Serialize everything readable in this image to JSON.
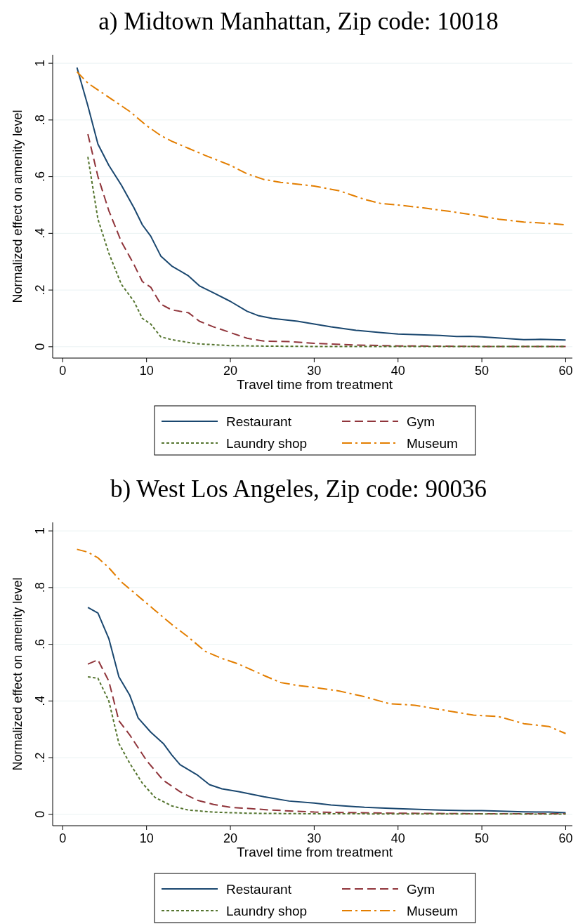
{
  "chart_data": [
    {
      "type": "line",
      "title": "a) Midtown Manhattan, Zip code: 10018",
      "xlabel": "Travel time from treatment",
      "ylabel": "Normalized effect on amenity level",
      "xlim": [
        -1.2,
        60.8
      ],
      "ylim": [
        -0.04,
        1.03
      ],
      "xticks": [
        {
          "value": 0,
          "label": "0"
        },
        10,
        20,
        30,
        40,
        50,
        60
      ],
      "yticks": [
        {
          "value": 0,
          "label": "0"
        },
        {
          "value": 0.2,
          "label": ".2"
        },
        {
          "value": 0.4,
          "label": ".4"
        },
        {
          "value": 0.6,
          "label": ".6"
        },
        {
          "value": 0.8,
          "label": ".8"
        },
        1
      ],
      "grid": "y",
      "legend": "bottom",
      "series": [
        {
          "name": "Restaurant",
          "color": "#1a476f",
          "line_style": "solid",
          "x": [
            1.7,
            3,
            4.2,
            5.5,
            7,
            8.5,
            9.5,
            10.5,
            11.7,
            13,
            15,
            16.3,
            18,
            20,
            22,
            23.3,
            25,
            28,
            30,
            32,
            35,
            38,
            40,
            45,
            47,
            48.5,
            50,
            55,
            57,
            60
          ],
          "values": [
            0.985,
            0.85,
            0.715,
            0.64,
            0.57,
            0.49,
            0.43,
            0.39,
            0.32,
            0.285,
            0.25,
            0.215,
            0.19,
            0.16,
            0.125,
            0.11,
            0.1,
            0.09,
            0.08,
            0.07,
            0.058,
            0.05,
            0.045,
            0.04,
            0.036,
            0.037,
            0.035,
            0.025,
            0.026,
            0.024
          ]
        },
        {
          "name": "Gym",
          "color": "#90353b",
          "line_style": "dashed",
          "x": [
            3,
            4.2,
            5.5,
            7,
            8.5,
            9.5,
            10.5,
            11.7,
            13,
            15,
            16.3,
            18,
            20,
            22,
            24,
            27,
            30,
            35,
            40,
            50,
            60
          ],
          "values": [
            0.75,
            0.6,
            0.48,
            0.37,
            0.29,
            0.23,
            0.21,
            0.15,
            0.13,
            0.12,
            0.09,
            0.07,
            0.05,
            0.03,
            0.02,
            0.018,
            0.012,
            0.006,
            0.003,
            0.001,
            0.001
          ]
        },
        {
          "name": "Laundry shop",
          "color": "#55752f",
          "line_style": "dotted",
          "x": [
            3,
            4.2,
            5.5,
            7,
            8.5,
            9.5,
            10.5,
            11.7,
            13,
            15,
            16.3,
            20,
            25,
            30,
            60
          ],
          "values": [
            0.67,
            0.45,
            0.33,
            0.22,
            0.16,
            0.1,
            0.08,
            0.035,
            0.025,
            0.015,
            0.01,
            0.004,
            0.002,
            0.001,
            0.001
          ]
        },
        {
          "name": "Museum",
          "color": "#e37e00",
          "line_style": "dashdot",
          "x": [
            1.7,
            3,
            4.5,
            6,
            8,
            10,
            11.7,
            13,
            15,
            17,
            20,
            22,
            24,
            26,
            30,
            33,
            36,
            38,
            40,
            43,
            46,
            49,
            52,
            55,
            58,
            60
          ],
          "values": [
            0.97,
            0.93,
            0.9,
            0.87,
            0.83,
            0.78,
            0.745,
            0.725,
            0.7,
            0.675,
            0.64,
            0.61,
            0.59,
            0.58,
            0.567,
            0.55,
            0.52,
            0.505,
            0.5,
            0.49,
            0.478,
            0.465,
            0.45,
            0.44,
            0.435,
            0.43
          ]
        }
      ]
    },
    {
      "type": "line",
      "title": "b) West Los Angeles, Zip code: 90036",
      "xlabel": "Travel time from treatment",
      "ylabel": "Normalized effect on amenity level",
      "xlim": [
        -1.2,
        60.8
      ],
      "ylim": [
        -0.04,
        1.03
      ],
      "xticks": [
        {
          "value": 0,
          "label": "0"
        },
        10,
        20,
        30,
        40,
        50,
        60
      ],
      "yticks": [
        {
          "value": 0,
          "label": "0"
        },
        {
          "value": 0.2,
          "label": ".2"
        },
        {
          "value": 0.4,
          "label": ".4"
        },
        {
          "value": 0.6,
          "label": ".6"
        },
        {
          "value": 0.8,
          "label": ".8"
        },
        1
      ],
      "grid": "y",
      "legend": "bottom",
      "series": [
        {
          "name": "Restaurant",
          "color": "#1a476f",
          "line_style": "solid",
          "x": [
            3,
            4.2,
            5.5,
            6.7,
            8,
            9,
            10.5,
            12,
            13,
            14,
            16,
            17.5,
            19,
            21,
            24,
            27,
            30,
            32,
            36,
            40,
            45,
            48,
            50,
            55,
            58,
            60
          ],
          "values": [
            0.73,
            0.71,
            0.62,
            0.485,
            0.42,
            0.34,
            0.29,
            0.25,
            0.21,
            0.175,
            0.14,
            0.105,
            0.09,
            0.08,
            0.062,
            0.047,
            0.04,
            0.033,
            0.025,
            0.02,
            0.015,
            0.013,
            0.013,
            0.009,
            0.008,
            0.006
          ]
        },
        {
          "name": "Gym",
          "color": "#90353b",
          "line_style": "dashed",
          "x": [
            3,
            4.2,
            5.5,
            6.7,
            8,
            10,
            12,
            14,
            16,
            18,
            20,
            25,
            30,
            40,
            50,
            60
          ],
          "values": [
            0.53,
            0.545,
            0.47,
            0.33,
            0.28,
            0.19,
            0.12,
            0.08,
            0.05,
            0.035,
            0.025,
            0.015,
            0.008,
            0.004,
            0.002,
            0.002
          ]
        },
        {
          "name": "Laundry shop",
          "color": "#55752f",
          "line_style": "dotted",
          "x": [
            3,
            4.2,
            5.5,
            6.7,
            8,
            9.5,
            11,
            13,
            15,
            18,
            22,
            30,
            60
          ],
          "values": [
            0.485,
            0.48,
            0.4,
            0.25,
            0.18,
            0.11,
            0.06,
            0.03,
            0.015,
            0.008,
            0.004,
            0.002,
            0.001
          ]
        },
        {
          "name": "Museum",
          "color": "#e37e00",
          "line_style": "dashdot",
          "x": [
            1.7,
            3,
            4.2,
            5.5,
            7,
            9,
            11,
            13,
            15,
            17,
            19,
            21,
            24,
            26,
            28,
            30,
            33,
            36,
            39,
            42,
            45,
            47,
            49,
            52,
            55,
            58,
            60
          ],
          "values": [
            0.935,
            0.925,
            0.905,
            0.87,
            0.82,
            0.77,
            0.72,
            0.67,
            0.625,
            0.575,
            0.55,
            0.53,
            0.49,
            0.465,
            0.455,
            0.448,
            0.435,
            0.415,
            0.39,
            0.385,
            0.37,
            0.36,
            0.35,
            0.345,
            0.32,
            0.31,
            0.285
          ]
        }
      ]
    }
  ]
}
